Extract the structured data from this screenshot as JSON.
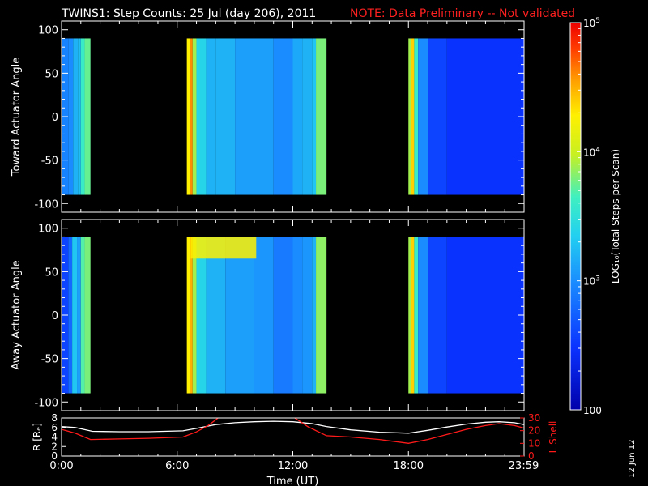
{
  "title": {
    "main": "TWINS1: Step Counts: 25 Jul (day 206), 2011",
    "note": "NOTE: Data Preliminary -- Not validated",
    "note_color": "#ff2020"
  },
  "footer_date": "12 Jun 12",
  "colors": {
    "background": "#000000",
    "axes": "#ffffff",
    "ephemeris": "#ff1a1a"
  },
  "chart_data": [
    {
      "type": "heatmap",
      "name": "toward-panel",
      "ylabel": "Toward Actuator Angle",
      "ylim": [
        -110,
        110
      ],
      "xlim": [
        0,
        24
      ],
      "yticks": [
        -100,
        -50,
        0,
        50,
        100
      ],
      "ytick_labels": [
        "-100",
        "-50",
        "0",
        "50",
        "100"
      ],
      "angle_range": [
        -90,
        90
      ],
      "colormap": "rainbow",
      "blocks": [
        {
          "start": 0.0,
          "end": 1.5,
          "bands": [
            {
              "t": 0.0,
              "value": 2.95
            },
            {
              "t": 0.35,
              "value": 3.0
            },
            {
              "t": 0.6,
              "value": 3.2
            },
            {
              "t": 0.85,
              "value": 3.25
            },
            {
              "t": 1.0,
              "value": 3.6
            },
            {
              "t": 1.2,
              "value": 3.75
            },
            {
              "t": 1.5,
              "value": 3.75
            }
          ]
        },
        {
          "start": 6.5,
          "end": 13.75,
          "bands": [
            {
              "t": 6.5,
              "value": 4.3
            },
            {
              "t": 6.65,
              "value": 4.6
            },
            {
              "t": 6.8,
              "value": 3.9
            },
            {
              "t": 7.0,
              "value": 3.4
            },
            {
              "t": 7.5,
              "value": 3.2
            },
            {
              "t": 8.0,
              "value": 3.2
            },
            {
              "t": 9.0,
              "value": 3.1
            },
            {
              "t": 10.0,
              "value": 3.1
            },
            {
              "t": 11.0,
              "value": 3.0
            },
            {
              "t": 12.0,
              "value": 3.15
            },
            {
              "t": 12.5,
              "value": 3.2
            },
            {
              "t": 13.0,
              "value": 3.3
            },
            {
              "t": 13.2,
              "value": 3.8
            },
            {
              "t": 13.75,
              "value": 3.8
            }
          ]
        },
        {
          "start": 18.0,
          "end": 24.0,
          "bands": [
            {
              "t": 18.0,
              "value": 3.9
            },
            {
              "t": 18.15,
              "value": 4.4
            },
            {
              "t": 18.3,
              "value": 3.6
            },
            {
              "t": 18.5,
              "value": 3.0
            },
            {
              "t": 19.0,
              "value": 2.6
            },
            {
              "t": 20.0,
              "value": 2.5
            },
            {
              "t": 24.0,
              "value": 2.5
            }
          ]
        }
      ]
    },
    {
      "type": "heatmap",
      "name": "away-panel",
      "ylabel": "Away Actuator Angle",
      "ylim": [
        -110,
        110
      ],
      "xlim": [
        0,
        24
      ],
      "yticks": [
        -100,
        -50,
        0,
        50,
        100
      ],
      "ytick_labels": [
        "-100",
        "-50",
        "0",
        "50",
        "100"
      ],
      "angle_range": [
        -90,
        90
      ],
      "colormap": "rainbow",
      "blocks": [
        {
          "start": 0.0,
          "end": 1.5,
          "bands": [
            {
              "t": 0.0,
              "value": 2.6
            },
            {
              "t": 0.35,
              "value": 2.8
            },
            {
              "t": 0.55,
              "value": 3.3
            },
            {
              "t": 0.8,
              "value": 3.1
            },
            {
              "t": 1.0,
              "value": 3.7
            },
            {
              "t": 1.2,
              "value": 3.8
            },
            {
              "t": 1.5,
              "value": 3.8
            }
          ]
        },
        {
          "start": 6.5,
          "end": 13.75,
          "bands": [
            {
              "t": 6.5,
              "value": 4.3
            },
            {
              "t": 6.65,
              "value": 4.5
            },
            {
              "t": 6.8,
              "value": 3.9
            },
            {
              "t": 7.0,
              "value": 3.4
            },
            {
              "t": 7.5,
              "value": 3.2
            },
            {
              "t": 8.5,
              "value": 3.1
            },
            {
              "t": 10.0,
              "value": 3.05
            },
            {
              "t": 11.0,
              "value": 2.9
            },
            {
              "t": 12.0,
              "value": 3.0
            },
            {
              "t": 12.5,
              "value": 3.05
            },
            {
              "t": 13.0,
              "value": 3.2
            },
            {
              "t": 13.2,
              "value": 3.85
            },
            {
              "t": 13.75,
              "value": 3.85
            }
          ]
        },
        {
          "start": 18.0,
          "end": 24.0,
          "bands": [
            {
              "t": 18.0,
              "value": 3.9
            },
            {
              "t": 18.15,
              "value": 4.4
            },
            {
              "t": 18.3,
              "value": 3.6
            },
            {
              "t": 18.5,
              "value": 3.0
            },
            {
              "t": 19.0,
              "value": 2.6
            },
            {
              "t": 20.0,
              "value": 2.5
            },
            {
              "t": 24.0,
              "value": 2.5
            }
          ]
        }
      ],
      "feature": {
        "t_start": 6.7,
        "t_end": 10.1,
        "angle_from": 65,
        "angle_to": 90,
        "value": 4.3
      }
    },
    {
      "type": "line",
      "name": "ephemeris-panel",
      "ylabel_left": "R [Rₑ]",
      "ylabel_right": "L Shell",
      "xlabel": "Time (UT)",
      "xlim": [
        0,
        24
      ],
      "ylim_left": [
        0,
        8
      ],
      "ylim_right": [
        0,
        30
      ],
      "yticks_left": [
        0,
        2,
        4,
        6,
        8
      ],
      "yticks_right": [
        0,
        10,
        20,
        30
      ],
      "xticks": [
        0,
        6,
        12,
        18,
        23.98
      ],
      "xtick_labels": [
        "0:00",
        "6:00",
        "12:00",
        "18:00",
        "23:59"
      ],
      "series": [
        {
          "axis": "left",
          "color": "#ffffff",
          "x": [
            0,
            0.7,
            1.6,
            3,
            4.5,
            6.3,
            7,
            8,
            9,
            10,
            11,
            12,
            13,
            13.75,
            15,
            16.5,
            18,
            19,
            20,
            21,
            22,
            22.7,
            23.5,
            24
          ],
          "y": [
            6.2,
            6.0,
            5.2,
            5.1,
            5.1,
            5.3,
            5.8,
            6.6,
            7.0,
            7.2,
            7.3,
            7.2,
            6.8,
            6.2,
            5.5,
            5.0,
            4.8,
            5.4,
            6.1,
            6.7,
            7.1,
            7.2,
            7.0,
            6.6
          ]
        },
        {
          "axis": "right",
          "color": "#ff1a1a",
          "x": [
            0,
            0.7,
            1.5,
            3,
            4.5,
            6.3,
            7,
            7.6,
            8.0,
            8.2,
            11.7,
            12.0,
            12.3,
            12.8,
            13.75,
            15,
            16.5,
            18,
            19,
            20,
            21,
            22,
            22.7,
            23.5,
            24
          ],
          "y": [
            21,
            18,
            13,
            13.5,
            14,
            15,
            19,
            24,
            28.5,
            31,
            31,
            31,
            28,
            23,
            16,
            15,
            13,
            10,
            13,
            17,
            21,
            24,
            25.5,
            24,
            22
          ]
        }
      ]
    },
    {
      "type": "colorbar",
      "name": "colorbar",
      "label": "LOG₁₀(Total Steps per Scan)",
      "range": [
        2,
        5
      ],
      "ticks": [
        {
          "value": 5,
          "mantissa": "10",
          "exponent": "5"
        },
        {
          "value": 4,
          "mantissa": "10",
          "exponent": "4"
        },
        {
          "value": 3,
          "mantissa": "10",
          "exponent": "3"
        },
        {
          "value": 2,
          "mantissa": "100",
          "exponent": ""
        }
      ]
    }
  ]
}
